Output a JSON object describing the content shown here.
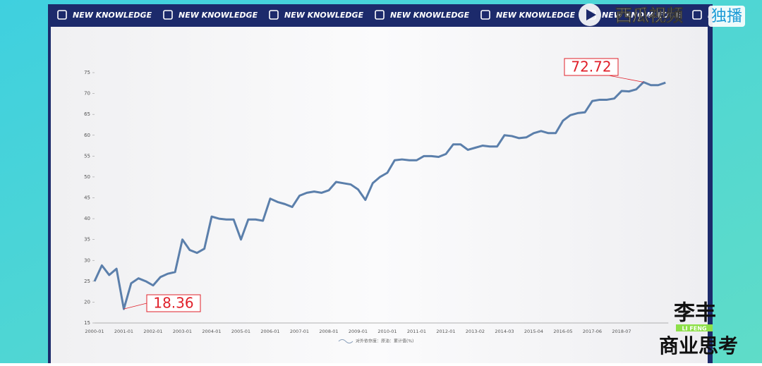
{
  "banner": "NEW KNOWLEDGE",
  "watermark": {
    "brand": "西瓜视频",
    "tag": "独播"
  },
  "logo": {
    "name": "李丰",
    "pinyin": "LI FENG",
    "show": "商业思考"
  },
  "chart_data": {
    "type": "line",
    "categories": [
      "2000-01",
      null,
      null,
      null,
      "2001-01",
      null,
      null,
      null,
      "2002-01",
      null,
      null,
      null,
      "2003-01",
      null,
      null,
      null,
      "2004-01",
      null,
      null,
      null,
      "2005-01",
      null,
      null,
      null,
      "2006-01",
      null,
      null,
      null,
      "2007-01",
      null,
      null,
      null,
      "2008-01",
      null,
      null,
      null,
      "2009-01",
      null,
      null,
      null,
      "2010-01",
      null,
      null,
      null,
      "2011-01",
      null,
      null,
      null,
      "2012-01",
      null,
      null,
      null,
      "2013-02",
      null,
      null,
      null,
      "2014-03",
      null,
      null,
      null,
      "2015-04",
      null,
      null,
      null,
      "2016-05",
      null,
      null,
      null,
      "2017-06",
      null,
      null,
      null,
      "2018-07",
      null,
      null,
      null,
      null,
      null,
      null
    ],
    "series": [
      {
        "name": "对外依存度：原油：累计值(%)",
        "color": "#5b7fab",
        "values": [
          25,
          28.8,
          26.5,
          28,
          18.36,
          24.5,
          25.7,
          25,
          24,
          26,
          26.8,
          27.2,
          35,
          32.5,
          31.8,
          32.8,
          40.5,
          40,
          39.8,
          39.8,
          35,
          39.8,
          39.8,
          39.5,
          44.8,
          44,
          43.5,
          42.8,
          45.5,
          46.2,
          46.5,
          46.2,
          46.8,
          48.8,
          48.5,
          48.2,
          47,
          44.5,
          48.5,
          50,
          51,
          54,
          54.2,
          54,
          54,
          55,
          55,
          54.8,
          55.5,
          57.8,
          57.8,
          56.5,
          57,
          57.5,
          57.3,
          57.3,
          60,
          59.8,
          59.3,
          59.5,
          60.5,
          61,
          60.5,
          60.5,
          63.5,
          64.8,
          65.3,
          65.5,
          68.2,
          68.5,
          68.5,
          68.8,
          70.6,
          70.5,
          71,
          72.72,
          72,
          72,
          72.6
        ]
      }
    ],
    "ylim": [
      15,
      75
    ],
    "yticks": [
      15,
      20,
      25,
      30,
      35,
      40,
      45,
      50,
      55,
      60,
      65,
      70,
      75
    ],
    "label_color": "#e0202a"
  }
}
